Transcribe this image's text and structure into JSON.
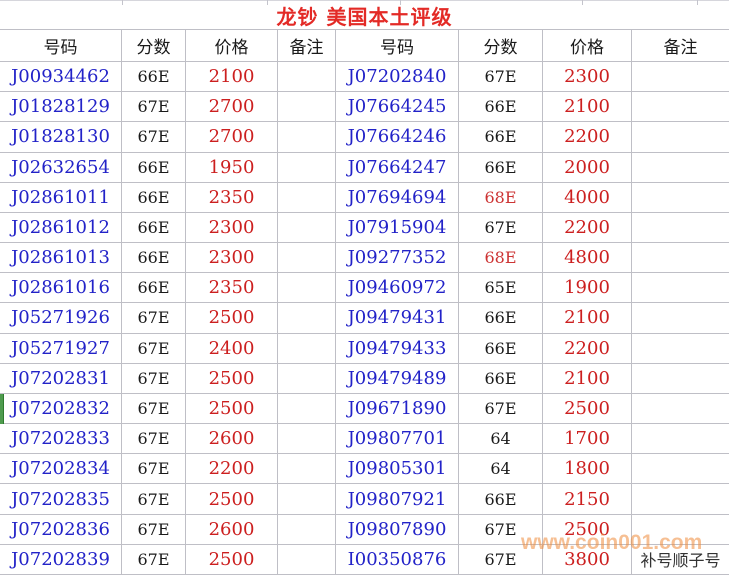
{
  "title": "龙钞  美国本土评级",
  "watermark": "www.coin001.com",
  "highlight_score_value": "68E",
  "colors": {
    "serial_blue": "#2222C8",
    "price_red": "#CC1F1F",
    "title_red": "#E32A26",
    "score_highlight_red": "#CC3333",
    "gridline_gray": "#bfbfc6",
    "green_marker": "#4E9B4E",
    "watermark_orange": "#F08C3C"
  },
  "green_marker_row": 12,
  "left_table": {
    "headers": [
      "号码",
      "分数",
      "价格",
      "备注"
    ],
    "rows": [
      [
        "J00934462",
        "66E",
        "2100",
        ""
      ],
      [
        "J01828129",
        "67E",
        "2700",
        ""
      ],
      [
        "J01828130",
        "67E",
        "2700",
        ""
      ],
      [
        "J02632654",
        "66E",
        "1950",
        ""
      ],
      [
        "J02861011",
        "66E",
        "2350",
        ""
      ],
      [
        "J02861012",
        "66E",
        "2300",
        ""
      ],
      [
        "J02861013",
        "66E",
        "2300",
        ""
      ],
      [
        "J02861016",
        "66E",
        "2350",
        ""
      ],
      [
        "J05271926",
        "67E",
        "2500",
        ""
      ],
      [
        "J05271927",
        "67E",
        "2400",
        ""
      ],
      [
        "J07202831",
        "67E",
        "2500",
        ""
      ],
      [
        "J07202832",
        "67E",
        "2500",
        ""
      ],
      [
        "J07202833",
        "67E",
        "2600",
        ""
      ],
      [
        "J07202834",
        "67E",
        "2200",
        ""
      ],
      [
        "J07202835",
        "67E",
        "2500",
        ""
      ],
      [
        "J07202836",
        "67E",
        "2600",
        ""
      ],
      [
        "J07202839",
        "67E",
        "2500",
        ""
      ]
    ]
  },
  "right_table": {
    "headers": [
      "号码",
      "分数",
      "价格",
      "备注"
    ],
    "rows": [
      [
        "J07202840",
        "67E",
        "2300",
        ""
      ],
      [
        "J07664245",
        "66E",
        "2100",
        ""
      ],
      [
        "J07664246",
        "66E",
        "2200",
        ""
      ],
      [
        "J07664247",
        "66E",
        "2000",
        ""
      ],
      [
        "J07694694",
        "68E",
        "4000",
        ""
      ],
      [
        "J07915904",
        "67E",
        "2200",
        ""
      ],
      [
        "J09277352",
        "68E",
        "4800",
        ""
      ],
      [
        "J09460972",
        "65E",
        "1900",
        ""
      ],
      [
        "J09479431",
        "66E",
        "2100",
        ""
      ],
      [
        "J09479433",
        "66E",
        "2200",
        ""
      ],
      [
        "J09479489",
        "66E",
        "2100",
        ""
      ],
      [
        "J09671890",
        "67E",
        "2500",
        ""
      ],
      [
        "J09807701",
        "64",
        "1700",
        ""
      ],
      [
        "J09805301",
        "64",
        "1800",
        ""
      ],
      [
        "J09807921",
        "66E",
        "2150",
        ""
      ],
      [
        "J09807890",
        "67E",
        "2500",
        ""
      ],
      [
        "I00350876",
        "67E",
        "3800",
        "补号顺子号"
      ]
    ]
  }
}
